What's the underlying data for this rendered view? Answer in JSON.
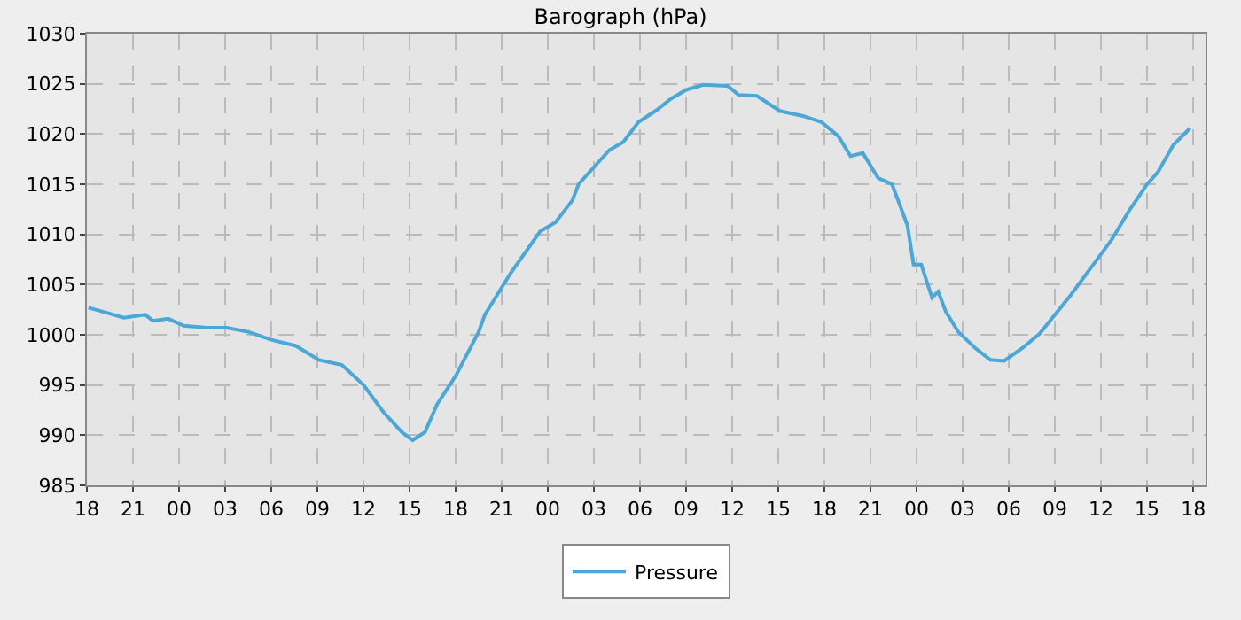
{
  "chart_data": {
    "type": "line",
    "title": "Barograph (hPa)",
    "x": [
      18.1,
      19.3,
      20.4,
      21.8,
      22.3,
      23.3,
      24.3,
      25.8,
      27.1,
      28.5,
      30.0,
      31.6,
      33.1,
      34.6,
      36.0,
      37.3,
      38.5,
      39.2,
      40.0,
      40.8,
      42.0,
      43.5,
      43.9,
      45.6,
      47.5,
      48.5,
      49.6,
      50.0,
      52.0,
      52.9,
      53.9,
      55.0,
      56.0,
      57.0,
      58.1,
      59.7,
      60.4,
      61.6,
      63.1,
      64.6,
      65.8,
      66.9,
      67.7,
      68.5,
      69.5,
      70.4,
      71.4,
      71.8,
      72.3,
      73.0,
      73.4,
      73.9,
      74.7,
      75.8,
      76.8,
      77.7,
      78.9,
      80.0,
      82.0,
      83.5,
      84.7,
      85.8,
      87.0,
      87.7,
      88.7,
      89.8
    ],
    "series": [
      {
        "name": "Pressure",
        "color": "#4aa8d8",
        "values": [
          1002.7,
          1002.2,
          1001.7,
          1002.0,
          1001.4,
          1001.6,
          1000.9,
          1000.7,
          1000.7,
          1000.3,
          999.5,
          998.9,
          997.5,
          997.0,
          995.0,
          992.3,
          990.3,
          989.5,
          990.3,
          993.1,
          995.9,
          1000.3,
          1002.0,
          1006.2,
          1010.3,
          1011.2,
          1013.4,
          1015.0,
          1018.4,
          1019.2,
          1021.2,
          1022.3,
          1023.5,
          1024.4,
          1024.9,
          1024.8,
          1023.9,
          1023.8,
          1022.3,
          1021.8,
          1021.2,
          1019.8,
          1017.8,
          1018.1,
          1015.6,
          1015.0,
          1010.9,
          1007.0,
          1007.0,
          1003.7,
          1004.3,
          1002.3,
          1000.3,
          998.7,
          997.5,
          997.4,
          998.7,
          1000.1,
          1003.9,
          1007.0,
          1009.5,
          1012.3,
          1015.0,
          1016.2,
          1018.9,
          1020.6
        ]
      }
    ],
    "xlim": [
      18,
      90.8
    ],
    "xticks": [
      18,
      21,
      {
        "value": 24,
        "label": "00"
      },
      {
        "value": 27,
        "label": "03"
      },
      {
        "value": 30,
        "label": "06"
      },
      {
        "value": 33,
        "label": "09"
      },
      {
        "value": 36,
        "label": "12"
      },
      {
        "value": 39,
        "label": "15"
      },
      {
        "value": 42,
        "label": "18"
      },
      {
        "value": 45,
        "label": "21"
      },
      {
        "value": 48,
        "label": "00"
      },
      {
        "value": 51,
        "label": "03"
      },
      {
        "value": 54,
        "label": "06"
      },
      {
        "value": 57,
        "label": "09"
      },
      {
        "value": 60,
        "label": "12"
      },
      {
        "value": 63,
        "label": "15"
      },
      {
        "value": 66,
        "label": "18"
      },
      {
        "value": 69,
        "label": "21"
      },
      {
        "value": 72,
        "label": "00"
      },
      {
        "value": 75,
        "label": "03"
      },
      {
        "value": 78,
        "label": "06"
      },
      {
        "value": 81,
        "label": "09"
      },
      {
        "value": 84,
        "label": "12"
      },
      {
        "value": 87,
        "label": "15"
      },
      {
        "value": 90,
        "label": "18"
      }
    ],
    "ylim": [
      985,
      1030
    ],
    "yticks": [
      985,
      990,
      995,
      1000,
      1005,
      1010,
      1015,
      1020,
      1025,
      1030
    ],
    "grid": true,
    "legend": "bottom",
    "marker": "none",
    "line_style": "solid"
  }
}
